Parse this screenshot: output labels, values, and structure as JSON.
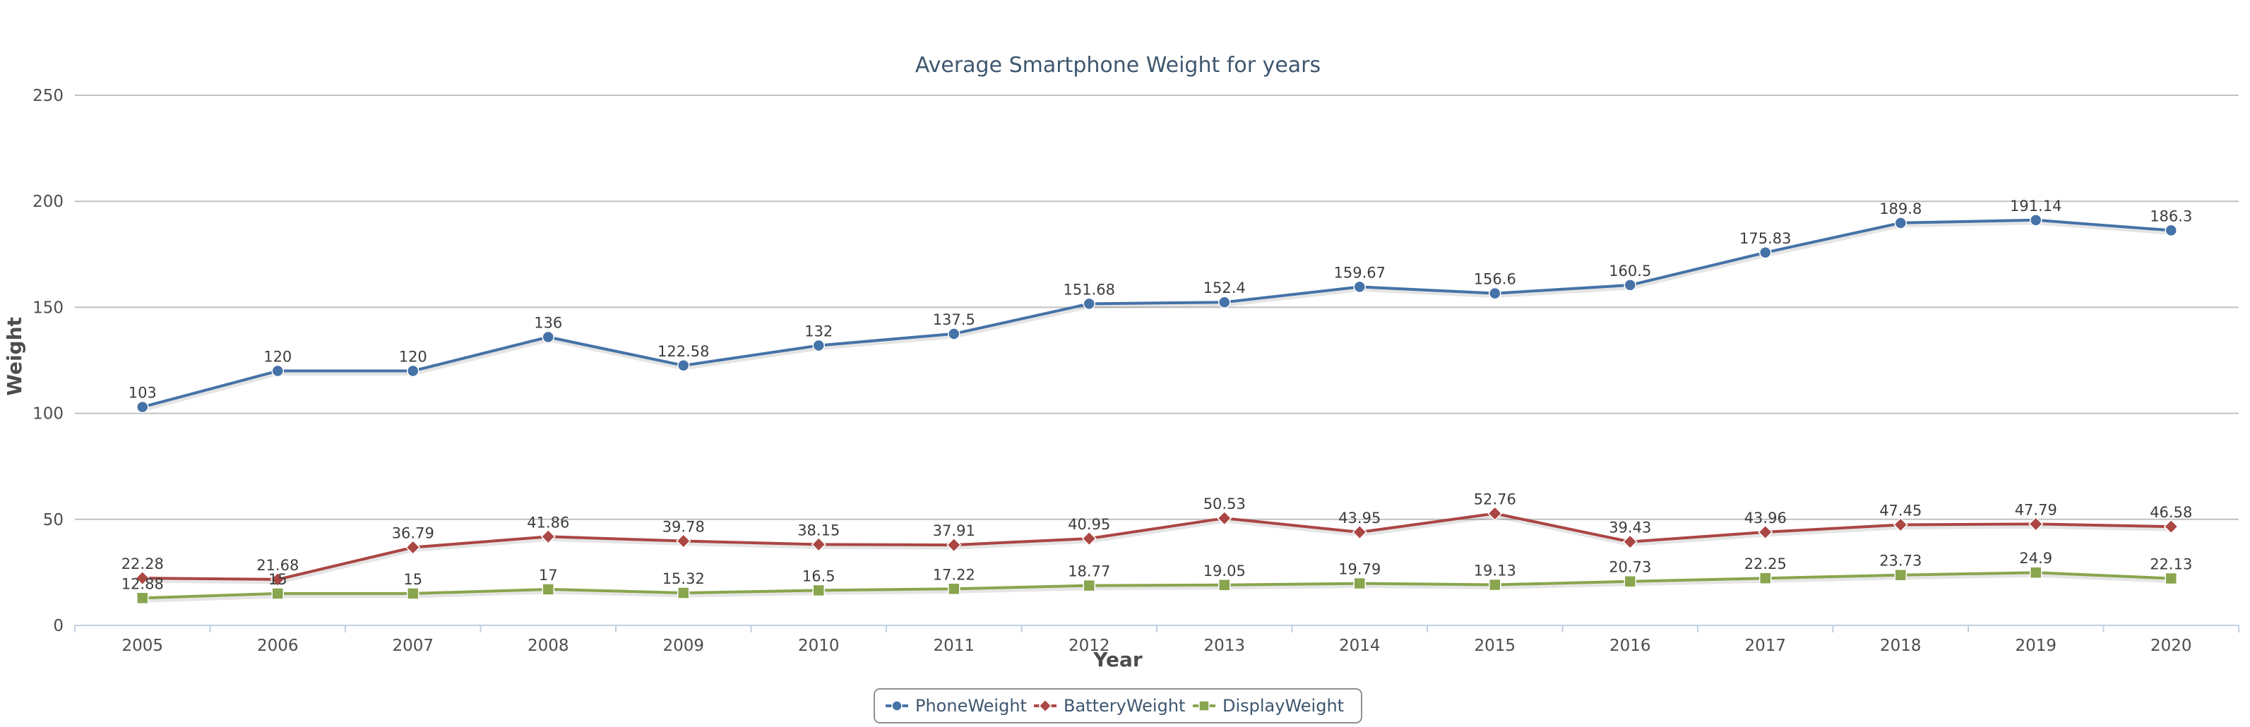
{
  "chart_data": {
    "type": "line",
    "title": "Average Smartphone Weight for years",
    "xlabel": "Year",
    "ylabel": "Weight",
    "ylim": [
      0,
      250
    ],
    "yticks": [
      0,
      50,
      100,
      150,
      200,
      250
    ],
    "grid": "horizontal",
    "legend_position": "bottom-center",
    "categories": [
      "2005",
      "2006",
      "2007",
      "2008",
      "2009",
      "2010",
      "2011",
      "2012",
      "2013",
      "2014",
      "2015",
      "2016",
      "2017",
      "2018",
      "2019",
      "2020"
    ],
    "series": [
      {
        "name": "PhoneWeight",
        "color": "#4572a7",
        "marker": "circle",
        "values": [
          103,
          120,
          120,
          136,
          122.58,
          132,
          137.5,
          151.68,
          152.4,
          159.67,
          156.6,
          160.5,
          175.83,
          189.8,
          191.14,
          186.3
        ]
      },
      {
        "name": "BatteryWeight",
        "color": "#aa4643",
        "marker": "diamond",
        "values": [
          22.28,
          21.68,
          36.79,
          41.86,
          39.78,
          38.15,
          37.91,
          40.95,
          50.53,
          43.95,
          52.76,
          39.43,
          43.96,
          47.45,
          47.79,
          46.58
        ]
      },
      {
        "name": "DisplayWeight",
        "color": "#89a54e",
        "marker": "square",
        "values": [
          12.88,
          15,
          15,
          17,
          15.32,
          16.5,
          17.22,
          18.77,
          19.05,
          19.79,
          19.13,
          20.73,
          22.25,
          23.73,
          24.9,
          22.13
        ]
      }
    ]
  }
}
